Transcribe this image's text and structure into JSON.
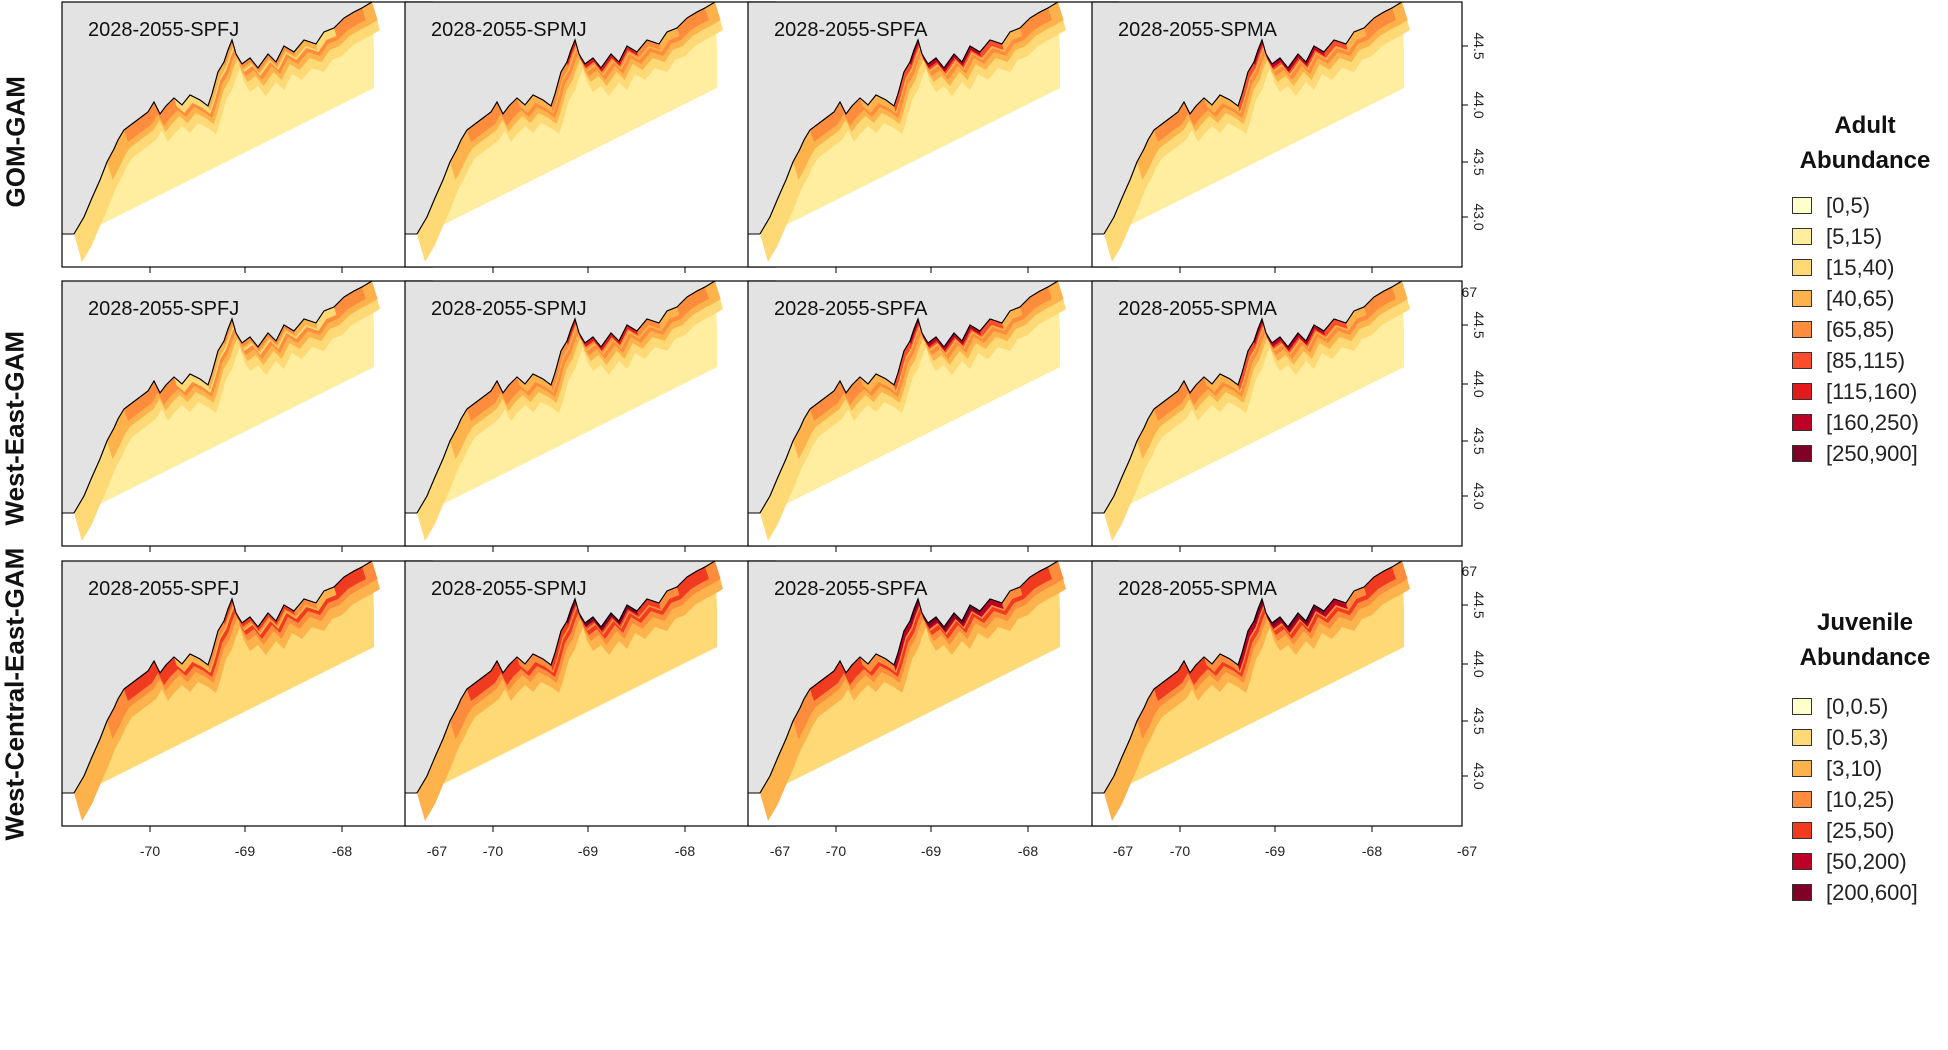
{
  "rows": [
    {
      "label": "GOM-GAM"
    },
    {
      "label": "West-East-GAM"
    },
    {
      "label": "West-Central-East-GAM"
    }
  ],
  "columns": [
    {
      "title": "2028-2055-SPFJ"
    },
    {
      "title": "2028-2055-SPMJ"
    },
    {
      "title": "2028-2055-SPFA"
    },
    {
      "title": "2028-2055-SPMA"
    }
  ],
  "axes": {
    "x_ticks": [
      "-70",
      "-69",
      "-68",
      "-67"
    ],
    "y_ticks": [
      "43.0",
      "43.5",
      "44.0",
      "44.5"
    ]
  },
  "legend_adult": {
    "title_line1": "Adult",
    "title_line2": "Abundance",
    "items": [
      {
        "label": "[0,5)",
        "color": "#ffffcc"
      },
      {
        "label": "[5,15)",
        "color": "#ffeda0"
      },
      {
        "label": "[15,40)",
        "color": "#fed976"
      },
      {
        "label": "[40,65)",
        "color": "#feb24c"
      },
      {
        "label": "[65,85)",
        "color": "#fd8d3c"
      },
      {
        "label": "[85,115)",
        "color": "#fc4e2a"
      },
      {
        "label": "[115,160)",
        "color": "#e31a1c"
      },
      {
        "label": "[160,250)",
        "color": "#bd0026"
      },
      {
        "label": "[250,900]",
        "color": "#800026"
      }
    ]
  },
  "legend_juvenile": {
    "title_line1": "Juvenile",
    "title_line2": "Abundance",
    "items": [
      {
        "label": "[0,0.5)",
        "color": "#ffffcc"
      },
      {
        "label": "[0.5,3)",
        "color": "#fed976"
      },
      {
        "label": "[3,10)",
        "color": "#feb24c"
      },
      {
        "label": "[10,25)",
        "color": "#fd8d3c"
      },
      {
        "label": "[25,50)",
        "color": "#f03b20"
      },
      {
        "label": "[50,200)",
        "color": "#bd0026"
      },
      {
        "label": "[200,600]",
        "color": "#800026"
      }
    ]
  },
  "colors": {
    "land": "#e3e3e3",
    "ocean_zero": "#ffffff",
    "frame": "#000000"
  }
}
